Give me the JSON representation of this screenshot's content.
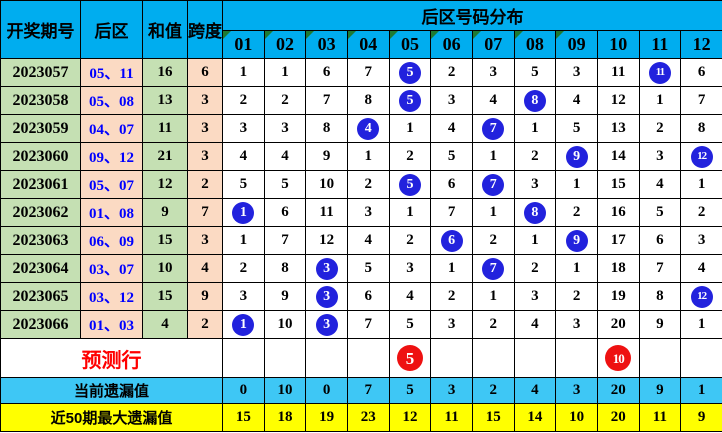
{
  "chart_data": {
    "type": "table",
    "title": "后区号码分布",
    "left_headers": [
      "开奖期号",
      "后区",
      "和值",
      "跨度"
    ],
    "number_columns": [
      "01",
      "02",
      "03",
      "04",
      "05",
      "06",
      "07",
      "08",
      "09",
      "10",
      "11",
      "12"
    ],
    "corner_marked_columns": [
      "01",
      "02",
      "03",
      "04",
      "05",
      "06",
      "07",
      "08",
      "09"
    ],
    "rows": [
      {
        "period": "2023057",
        "back": "05、11",
        "sum": "16",
        "span": "6",
        "cells": [
          "1",
          "1",
          "6",
          "7",
          "*5",
          "2",
          "3",
          "5",
          "3",
          "11",
          "*11",
          "6"
        ]
      },
      {
        "period": "2023058",
        "back": "05、08",
        "sum": "13",
        "span": "3",
        "cells": [
          "2",
          "2",
          "7",
          "8",
          "*5",
          "3",
          "4",
          "*8",
          "4",
          "12",
          "1",
          "7"
        ]
      },
      {
        "period": "2023059",
        "back": "04、07",
        "sum": "11",
        "span": "3",
        "cells": [
          "3",
          "3",
          "8",
          "*4",
          "1",
          "4",
          "*7",
          "1",
          "5",
          "13",
          "2",
          "8"
        ]
      },
      {
        "period": "2023060",
        "back": "09、12",
        "sum": "21",
        "span": "3",
        "cells": [
          "4",
          "4",
          "9",
          "1",
          "2",
          "5",
          "1",
          "2",
          "*9",
          "14",
          "3",
          "*12"
        ]
      },
      {
        "period": "2023061",
        "back": "05、07",
        "sum": "12",
        "span": "2",
        "cells": [
          "5",
          "5",
          "10",
          "2",
          "*5",
          "6",
          "*7",
          "3",
          "1",
          "15",
          "4",
          "1"
        ]
      },
      {
        "period": "2023062",
        "back": "01、08",
        "sum": "9",
        "span": "7",
        "cells": [
          "*1",
          "6",
          "11",
          "3",
          "1",
          "7",
          "1",
          "*8",
          "2",
          "16",
          "5",
          "2"
        ]
      },
      {
        "period": "2023063",
        "back": "06、09",
        "sum": "15",
        "span": "3",
        "cells": [
          "1",
          "7",
          "12",
          "4",
          "2",
          "*6",
          "2",
          "1",
          "*9",
          "17",
          "6",
          "3"
        ]
      },
      {
        "period": "2023064",
        "back": "03、07",
        "sum": "10",
        "span": "4",
        "cells": [
          "2",
          "8",
          "*3",
          "5",
          "3",
          "1",
          "*7",
          "2",
          "1",
          "18",
          "7",
          "4"
        ]
      },
      {
        "period": "2023065",
        "back": "03、12",
        "sum": "15",
        "span": "9",
        "cells": [
          "3",
          "9",
          "*3",
          "6",
          "4",
          "2",
          "1",
          "3",
          "2",
          "19",
          "8",
          "*12"
        ]
      },
      {
        "period": "2023066",
        "back": "01、03",
        "sum": "4",
        "span": "2",
        "cells": [
          "*1",
          "10",
          "*3",
          "7",
          "5",
          "3",
          "2",
          "4",
          "3",
          "20",
          "9",
          "1"
        ]
      }
    ],
    "prediction_row": {
      "label": "预测行",
      "cells": [
        "",
        "",
        "",
        "",
        "*5",
        "",
        "",
        "",
        "",
        "*10",
        "",
        ""
      ]
    },
    "current_miss_row": {
      "label": "当前遗漏值",
      "values": [
        "0",
        "10",
        "0",
        "7",
        "5",
        "3",
        "2",
        "4",
        "3",
        "20",
        "9",
        "1"
      ]
    },
    "max_miss_row": {
      "label": "近50期最大遗漏值",
      "values": [
        "15",
        "18",
        "19",
        "23",
        "12",
        "11",
        "15",
        "14",
        "10",
        "20",
        "11",
        "9"
      ]
    }
  },
  "colors": {
    "header_blue": "#00ADEF",
    "row_green": "#C5E0B3",
    "row_peach": "#FBDAC3",
    "miss_cyan": "#3EC7F5",
    "miss_yellow": "#FFFF00",
    "ball_blue": "#2222DD",
    "ball_red": "#EE1111",
    "back_text_blue": "#0000FF",
    "prediction_red": "#FF0000",
    "corner_mark_green": "#1E7B34"
  }
}
